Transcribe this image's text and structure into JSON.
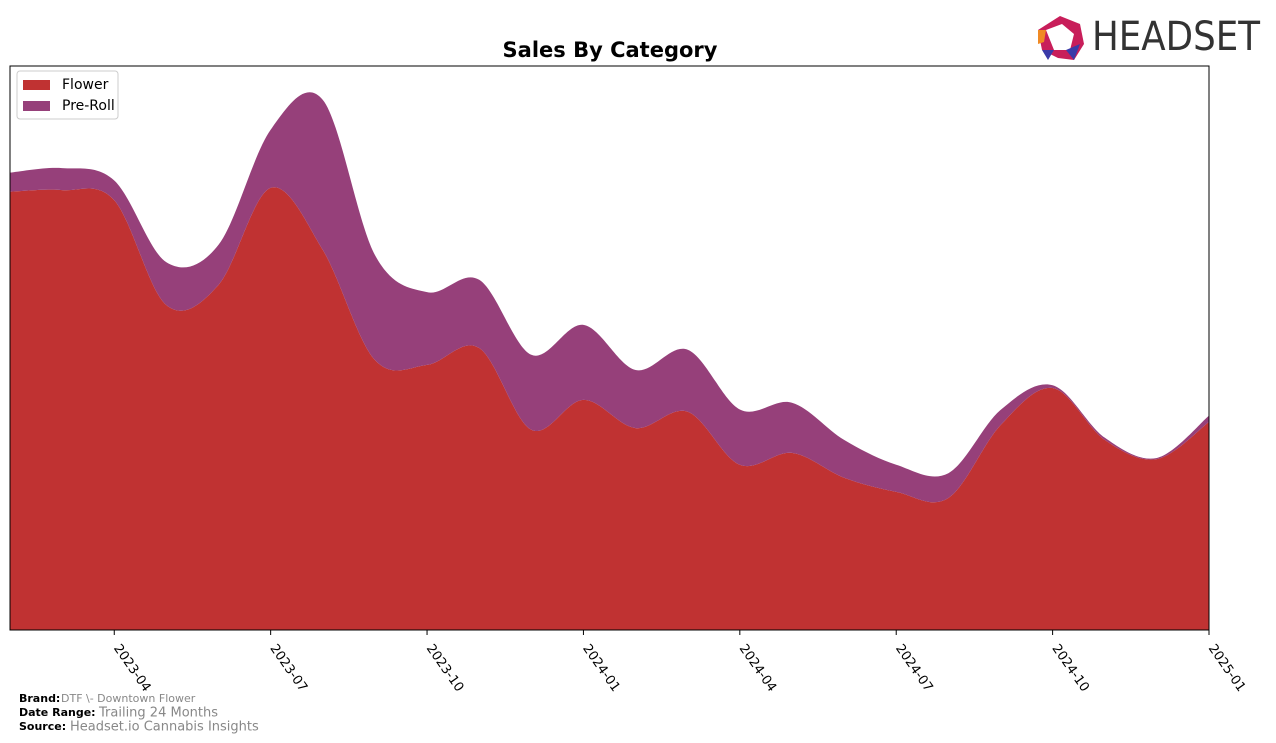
{
  "chart_data": {
    "type": "stacked-area",
    "title": "Sales By Category",
    "x": [
      "2023-02",
      "2023-03",
      "2023-04",
      "2023-05",
      "2023-06",
      "2023-07",
      "2023-08",
      "2023-09",
      "2023-10",
      "2023-11",
      "2023-12",
      "2024-01",
      "2024-02",
      "2024-03",
      "2024-04",
      "2024-05",
      "2024-06",
      "2024-07",
      "2024-08",
      "2024-09",
      "2024-10",
      "2024-11",
      "2024-12",
      "2025-01"
    ],
    "series": [
      {
        "name": "Flower",
        "color": "#c03232",
        "values": [
          77.7,
          78.0,
          76.2,
          57.6,
          61.2,
          78.4,
          67.4,
          47.9,
          47.0,
          50.0,
          35.5,
          40.8,
          35.8,
          38.7,
          29.3,
          31.4,
          27.0,
          24.5,
          23.4,
          36.3,
          42.9,
          33.7,
          30.3,
          36.9
        ]
      },
      {
        "name": "Pre-Roll",
        "color": "#96407a",
        "values": [
          3.4,
          3.9,
          3.5,
          7.6,
          7.1,
          10.3,
          26.6,
          18.6,
          12.9,
          12.1,
          13.3,
          13.3,
          10.3,
          11.0,
          9.8,
          8.9,
          6.7,
          4.8,
          4.4,
          2.7,
          0.5,
          0.4,
          0.2,
          1.1
        ]
      }
    ],
    "xlim": [
      "2023-02",
      "2025-01"
    ],
    "xticks": [
      "2023-04",
      "2023-07",
      "2023-10",
      "2024-01",
      "2024-04",
      "2024-07",
      "2024-10",
      "2025-01"
    ],
    "ylim": [
      0,
      100
    ],
    "legend": "upper-left"
  },
  "footer": {
    "brand_label": "Brand:",
    "brand": "DTF \\- Downtown Flower",
    "date_range_label": "Date Range:",
    "date_range": "Trailing 24 Months",
    "source_label": "Source:",
    "source": "Headset.io Cannabis Insights"
  },
  "logo": "HEADSET"
}
